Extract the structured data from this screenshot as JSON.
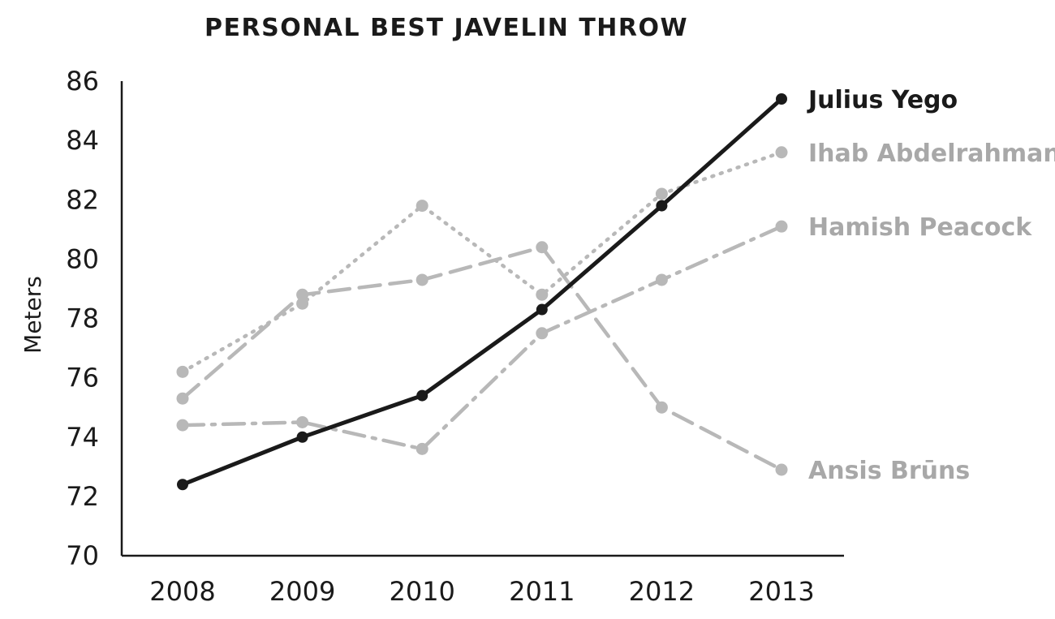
{
  "chart_data": {
    "type": "line",
    "title": "PERSONAL BEST JAVELIN THROW",
    "xlabel": "",
    "ylabel": "Meters",
    "x": [
      "2008",
      "2009",
      "2010",
      "2011",
      "2012",
      "2013"
    ],
    "ylim": [
      70,
      86
    ],
    "yticks": [
      "70",
      "72",
      "74",
      "76",
      "78",
      "80",
      "82",
      "84",
      "86"
    ],
    "grid": false,
    "legend": "direct labels at right end of each line",
    "series": [
      {
        "name": "Julius Yego",
        "values": [
          72.4,
          74.0,
          75.4,
          78.3,
          81.8,
          85.4
        ],
        "color": "#1a1a1a",
        "style": "solid"
      },
      {
        "name": "Ihab Abdelrahman",
        "values": [
          76.2,
          78.5,
          81.8,
          78.8,
          82.2,
          83.6
        ],
        "color": "#b8b8b8",
        "style": "dotted"
      },
      {
        "name": "Hamish Peacock",
        "values": [
          74.4,
          74.5,
          73.6,
          77.5,
          79.3,
          81.1
        ],
        "color": "#b8b8b8",
        "style": "dash-dot"
      },
      {
        "name": "Ansis Brūns",
        "values": [
          75.3,
          78.8,
          79.3,
          80.4,
          75.0,
          72.9
        ],
        "color": "#b8b8b8",
        "style": "dashed"
      }
    ]
  }
}
